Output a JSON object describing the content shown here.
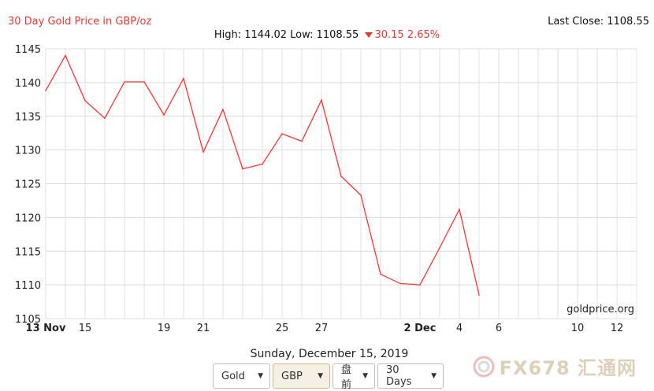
{
  "header": {
    "title": "30 Day Gold Price in GBP/oz",
    "last_close": "Last Close: 1108.55",
    "high_low": "High: 1144.02 Low: 1108.55",
    "change": "30.15 2.65%"
  },
  "footer": {
    "date": "Sunday, December 15, 2019",
    "selects": [
      {
        "value": "Gold"
      },
      {
        "value": "GBP"
      },
      {
        "value": "盘前"
      },
      {
        "value": "30 Days"
      }
    ],
    "watermark": "FX678 汇通网"
  },
  "chart_data": {
    "type": "line",
    "ylim": [
      1105,
      1145
    ],
    "yticks": [
      1105,
      1110,
      1115,
      1120,
      1125,
      1130,
      1135,
      1140,
      1145
    ],
    "x_range": [
      "2019-11-13",
      "2019-12-13"
    ],
    "x_tick_labels": [
      {
        "date": "2019-11-13",
        "label": "13 Nov",
        "bold": true
      },
      {
        "date": "2019-11-15",
        "label": "15"
      },
      {
        "date": "2019-11-19",
        "label": "19"
      },
      {
        "date": "2019-11-21",
        "label": "21"
      },
      {
        "date": "2019-11-25",
        "label": "25"
      },
      {
        "date": "2019-11-27",
        "label": "27"
      },
      {
        "date": "2019-12-02",
        "label": "2 Dec",
        "bold": true
      },
      {
        "date": "2019-12-04",
        "label": "4"
      },
      {
        "date": "2019-12-06",
        "label": "6"
      },
      {
        "date": "2019-12-10",
        "label": "10"
      },
      {
        "date": "2019-12-12",
        "label": "12"
      }
    ],
    "series": [
      {
        "color": "#ff3333",
        "points": [
          {
            "x": "2019-11-13",
            "y": 1138.8
          },
          {
            "x": "2019-11-14",
            "y": 1144.0
          },
          {
            "x": "2019-11-15",
            "y": 1137.3
          },
          {
            "x": "2019-11-16",
            "y": 1134.7
          },
          {
            "x": "2019-11-17",
            "y": 1140.1
          },
          {
            "x": "2019-11-18",
            "y": 1140.1
          },
          {
            "x": "2019-11-19",
            "y": 1135.2
          },
          {
            "x": "2019-11-20",
            "y": 1140.6
          },
          {
            "x": "2019-11-21",
            "y": 1129.7
          },
          {
            "x": "2019-11-22",
            "y": 1136.0
          },
          {
            "x": "2019-11-23",
            "y": 1127.2
          },
          {
            "x": "2019-11-24",
            "y": 1127.9
          },
          {
            "x": "2019-11-25",
            "y": 1132.4
          },
          {
            "x": "2019-11-26",
            "y": 1131.3
          },
          {
            "x": "2019-11-27",
            "y": 1137.4
          },
          {
            "x": "2019-11-28",
            "y": 1126.1
          },
          {
            "x": "2019-11-29",
            "y": 1123.3
          },
          {
            "x": "2019-11-30",
            "y": 1111.6
          },
          {
            "x": "2019-12-01",
            "y": 1110.2
          },
          {
            "x": "2019-12-02",
            "y": 1110.0
          },
          {
            "x": "2019-12-03",
            "y": 1115.5
          },
          {
            "x": "2019-12-04",
            "y": 1121.2
          },
          {
            "x": "2019-12-05",
            "y": 1108.5
          }
        ]
      }
    ],
    "grid": true,
    "source_label": "goldprice.org"
  }
}
